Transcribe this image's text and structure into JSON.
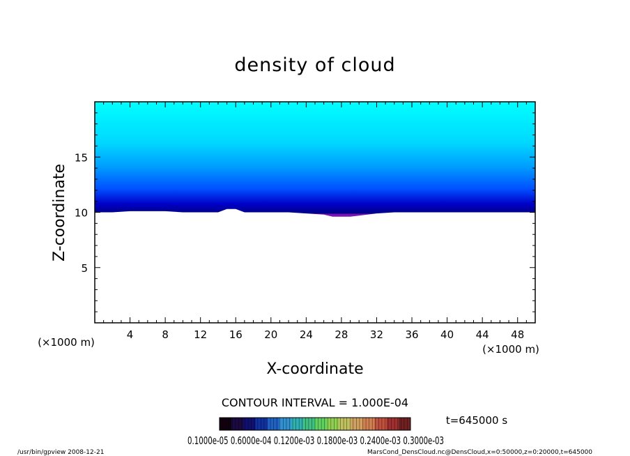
{
  "chart_data": {
    "type": "heatmap",
    "title": "density of cloud",
    "xlabel": "X-coordinate",
    "ylabel": "Z-coordinate",
    "x_unit": "(×1000 m)",
    "y_unit": "(×1000 m)",
    "xlim": [
      0,
      50
    ],
    "ylim": [
      0,
      20
    ],
    "x_ticks": [
      4,
      8,
      12,
      16,
      20,
      24,
      28,
      32,
      36,
      40,
      44,
      48
    ],
    "y_ticks": [
      5,
      10,
      15
    ],
    "cloud_base_z": [
      [
        0,
        10.0
      ],
      [
        2,
        10.0
      ],
      [
        4,
        10.1
      ],
      [
        6,
        10.1
      ],
      [
        8,
        10.1
      ],
      [
        10,
        10.0
      ],
      [
        12,
        10.0
      ],
      [
        14,
        10.0
      ],
      [
        15,
        10.3
      ],
      [
        16,
        10.3
      ],
      [
        17,
        10.0
      ],
      [
        18,
        10.0
      ],
      [
        20,
        10.0
      ],
      [
        22,
        10.0
      ],
      [
        24,
        9.9
      ],
      [
        26,
        9.8
      ],
      [
        27,
        9.6
      ],
      [
        28,
        9.6
      ],
      [
        29,
        9.6
      ],
      [
        30,
        9.7
      ],
      [
        32,
        9.9
      ],
      [
        34,
        10.0
      ],
      [
        36,
        10.0
      ],
      [
        38,
        10.0
      ],
      [
        40,
        10.0
      ],
      [
        42,
        10.0
      ],
      [
        44,
        10.0
      ],
      [
        46,
        10.0
      ],
      [
        48,
        10.0
      ],
      [
        50,
        10.0
      ]
    ],
    "cloud_top_z": 20,
    "colors": {
      "base_low": "#7a14b4",
      "dark": "#000088",
      "mid": "#0050ff",
      "light": "#00c8ff",
      "top": "#00ffff"
    },
    "contour_interval_label": "CONTOUR INTERVAL = 1.000E-04",
    "time_label": "t=645000 s",
    "colorbar_labels": "0.1000e-05 0.6000e-04 0.1200e-03 0.1800e-03 0.2400e-03 0.3000e-03",
    "colorbar_colors": [
      "#100010",
      "#1a0a40",
      "#101070",
      "#1030a0",
      "#2060c0",
      "#3090d0",
      "#30b0b0",
      "#40c080",
      "#60d060",
      "#90d050",
      "#c0c060",
      "#d0a060",
      "#d08050",
      "#c05040",
      "#a03030",
      "#702020"
    ]
  },
  "footer": {
    "program": "/usr/bin/gpview   2008-12-21",
    "source": "MarsCond_DensCloud.nc@DensCloud,x=0:50000,z=0:20000,t=645000"
  }
}
